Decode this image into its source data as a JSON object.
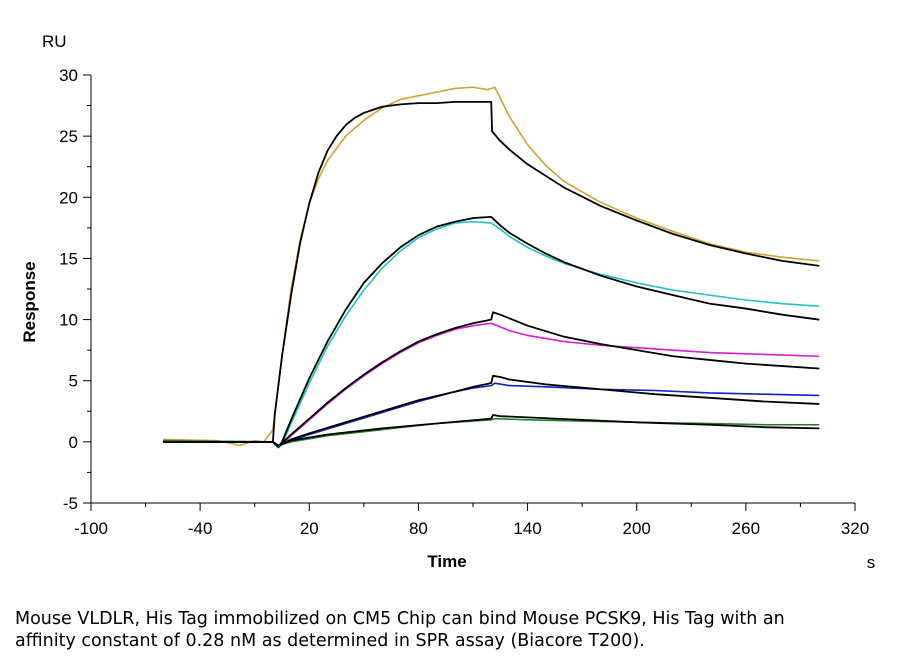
{
  "chart_data": {
    "type": "line",
    "title": "",
    "xlabel": "Time",
    "ylabel": "Response",
    "x_unit": "s",
    "y_unit": "RU",
    "xlim": [
      -100,
      320
    ],
    "ylim": [
      -5,
      30
    ],
    "x_ticks": [
      -100,
      -40,
      20,
      80,
      140,
      200,
      260,
      320
    ],
    "y_ticks": [
      -5,
      0,
      5,
      10,
      15,
      20,
      25,
      30
    ],
    "grid": false,
    "legend": "none",
    "series": [
      {
        "role": "measured",
        "color": "#d4a030",
        "x": [
          -60,
          -30,
          -18,
          -10,
          -5,
          0,
          5,
          10,
          15,
          20,
          25,
          30,
          40,
          50,
          60,
          70,
          80,
          90,
          100,
          110,
          118,
          122,
          130,
          140,
          150,
          160,
          180,
          200,
          220,
          240,
          260,
          280,
          300
        ],
        "y": [
          0.2,
          0.1,
          -0.3,
          0.1,
          0.0,
          1.0,
          7.0,
          12.5,
          16.5,
          19.5,
          21.5,
          23.0,
          25.0,
          26.3,
          27.3,
          28.0,
          28.3,
          28.6,
          28.9,
          29.0,
          28.8,
          29.0,
          26.6,
          24.3,
          22.6,
          21.3,
          19.6,
          18.3,
          17.2,
          16.2,
          15.5,
          15.1,
          14.8
        ]
      },
      {
        "role": "fitted",
        "color": "#000000",
        "x": [
          -60,
          -30,
          0,
          1,
          5,
          10,
          15,
          20,
          25,
          30,
          35,
          40,
          45,
          50,
          60,
          70,
          80,
          90,
          100,
          110,
          120,
          120.5,
          125,
          130,
          140,
          160,
          180,
          200,
          220,
          240,
          260,
          280,
          300
        ],
        "y": [
          0.0,
          0.0,
          0.0,
          2.2,
          7.0,
          12.0,
          16.3,
          19.5,
          22.0,
          23.8,
          25.0,
          25.9,
          26.5,
          26.9,
          27.4,
          27.6,
          27.7,
          27.7,
          27.8,
          27.8,
          27.8,
          25.4,
          24.6,
          23.9,
          22.7,
          20.8,
          19.3,
          18.1,
          17.0,
          16.1,
          15.4,
          14.8,
          14.4
        ]
      },
      {
        "role": "measured",
        "color": "#20c0c8",
        "x": [
          -60,
          0,
          3,
          5,
          10,
          20,
          30,
          40,
          50,
          60,
          70,
          80,
          90,
          100,
          110,
          120,
          125,
          130,
          140,
          150,
          160,
          180,
          200,
          220,
          240,
          260,
          280,
          300
        ],
        "y": [
          0.1,
          0.0,
          -0.5,
          -0.2,
          1.5,
          4.8,
          7.8,
          10.3,
          12.4,
          14.2,
          15.6,
          16.7,
          17.4,
          17.9,
          18.0,
          17.9,
          17.4,
          16.8,
          15.9,
          15.2,
          14.6,
          13.7,
          13.0,
          12.4,
          12.0,
          11.6,
          11.3,
          11.1
        ]
      },
      {
        "role": "fitted",
        "color": "#000000",
        "x": [
          -60,
          0,
          3,
          5,
          10,
          20,
          30,
          40,
          50,
          60,
          70,
          80,
          90,
          100,
          110,
          120,
          125,
          130,
          140,
          150,
          160,
          180,
          200,
          220,
          240,
          260,
          280,
          300
        ],
        "y": [
          0.0,
          0.0,
          -0.4,
          0.0,
          1.8,
          5.2,
          8.2,
          10.8,
          13.0,
          14.6,
          15.9,
          16.9,
          17.6,
          18.0,
          18.3,
          18.4,
          17.7,
          17.1,
          16.2,
          15.4,
          14.7,
          13.6,
          12.7,
          12.0,
          11.3,
          10.9,
          10.4,
          10.0
        ]
      },
      {
        "role": "measured",
        "color": "#d020d0",
        "x": [
          -60,
          0,
          3,
          5,
          10,
          20,
          30,
          40,
          50,
          60,
          70,
          80,
          90,
          100,
          110,
          120,
          125,
          130,
          140,
          160,
          180,
          200,
          220,
          240,
          260,
          280,
          300
        ],
        "y": [
          0.0,
          0.0,
          -0.4,
          -0.2,
          0.5,
          1.8,
          3.1,
          4.3,
          5.4,
          6.4,
          7.3,
          8.1,
          8.7,
          9.2,
          9.5,
          9.7,
          9.4,
          9.1,
          8.7,
          8.2,
          7.9,
          7.7,
          7.5,
          7.3,
          7.2,
          7.1,
          7.0
        ]
      },
      {
        "role": "fitted",
        "color": "#000000",
        "x": [
          -60,
          0,
          3,
          5,
          10,
          20,
          30,
          40,
          50,
          60,
          70,
          80,
          90,
          100,
          110,
          120,
          121,
          125,
          130,
          140,
          160,
          180,
          200,
          220,
          240,
          260,
          280,
          300
        ],
        "y": [
          0.0,
          0.0,
          -0.4,
          -0.1,
          0.6,
          1.9,
          3.2,
          4.4,
          5.5,
          6.5,
          7.4,
          8.2,
          8.8,
          9.3,
          9.7,
          10.0,
          10.6,
          10.4,
          10.1,
          9.5,
          8.6,
          8.0,
          7.5,
          7.0,
          6.7,
          6.4,
          6.2,
          6.0
        ]
      },
      {
        "role": "measured",
        "color": "#1020c0",
        "x": [
          -60,
          0,
          3,
          5,
          10,
          20,
          40,
          60,
          80,
          100,
          110,
          120,
          122,
          130,
          150,
          180,
          210,
          240,
          270,
          300
        ],
        "y": [
          0.0,
          0.0,
          -0.4,
          -0.2,
          0.1,
          0.6,
          1.5,
          2.4,
          3.3,
          4.1,
          4.4,
          4.6,
          4.8,
          4.6,
          4.5,
          4.3,
          4.2,
          4.0,
          3.9,
          3.8
        ]
      },
      {
        "role": "fitted",
        "color": "#000000",
        "x": [
          -60,
          0,
          3,
          5,
          10,
          20,
          40,
          60,
          80,
          100,
          110,
          120,
          121,
          125,
          130,
          150,
          180,
          210,
          240,
          270,
          300
        ],
        "y": [
          0.0,
          0.0,
          -0.4,
          -0.2,
          0.2,
          0.7,
          1.6,
          2.5,
          3.4,
          4.1,
          4.5,
          4.8,
          5.4,
          5.3,
          5.1,
          4.7,
          4.3,
          3.9,
          3.6,
          3.3,
          3.1
        ]
      },
      {
        "role": "measured",
        "color": "#208020",
        "x": [
          -60,
          0,
          3,
          5,
          10,
          30,
          60,
          90,
          120,
          122,
          140,
          170,
          200,
          240,
          270,
          300
        ],
        "y": [
          0.1,
          0.0,
          -0.3,
          -0.2,
          0.0,
          0.5,
          1.0,
          1.5,
          1.8,
          1.9,
          1.8,
          1.7,
          1.6,
          1.5,
          1.4,
          1.4
        ]
      },
      {
        "role": "fitted",
        "color": "#000000",
        "x": [
          -60,
          0,
          3,
          5,
          10,
          30,
          60,
          90,
          120,
          121,
          125,
          140,
          170,
          200,
          240,
          270,
          300
        ],
        "y": [
          0.0,
          0.0,
          -0.3,
          -0.2,
          0.1,
          0.6,
          1.1,
          1.5,
          1.9,
          2.2,
          2.1,
          2.0,
          1.8,
          1.6,
          1.4,
          1.2,
          1.1
        ]
      }
    ]
  },
  "caption": {
    "line1": "Mouse VLDLR, His Tag immobilized on CM5 Chip can bind Mouse PCSK9, His Tag with an",
    "line2": "affinity constant of 0.28 nM as determined in SPR assay (Biacore T200)."
  }
}
